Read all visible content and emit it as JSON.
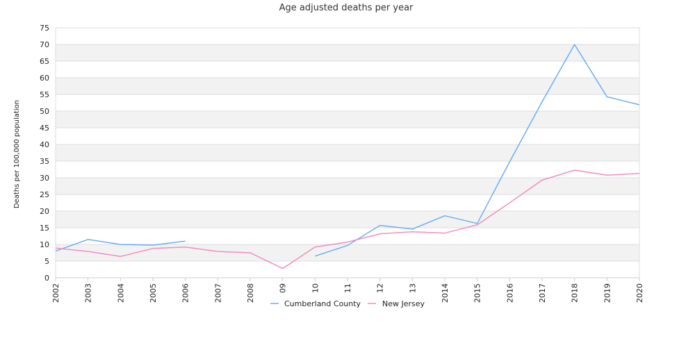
{
  "chart_data": {
    "type": "line",
    "title": "Age adjusted deaths per year",
    "xlabel": "",
    "ylabel": "Deaths per 100,000 population",
    "categories": [
      "2002",
      "2003",
      "2004",
      "2005",
      "2006",
      "2007",
      "2008",
      "09",
      "10",
      "11",
      "12",
      "13",
      "2014",
      "2015",
      "2016",
      "2017",
      "2018",
      "2019",
      "2020"
    ],
    "ylim": [
      0,
      75
    ],
    "ytick_step": 5,
    "grid": true,
    "legend_position": "bottom",
    "series": [
      {
        "name": "Cumberland County",
        "color": "#6aaef0",
        "values": [
          8.0,
          11.5,
          10.0,
          9.8,
          11.0,
          null,
          null,
          null,
          6.5,
          9.7,
          15.7,
          14.6,
          18.6,
          16.3,
          34.8,
          52.8,
          70.0,
          54.3,
          51.9
        ]
      },
      {
        "name": "New Jersey",
        "color": "#f28cbe",
        "values": [
          8.9,
          7.9,
          6.4,
          8.8,
          9.2,
          7.9,
          7.5,
          2.8,
          9.2,
          10.7,
          13.2,
          13.8,
          13.4,
          15.9,
          22.5,
          29.3,
          32.3,
          30.8,
          31.3
        ]
      }
    ]
  }
}
